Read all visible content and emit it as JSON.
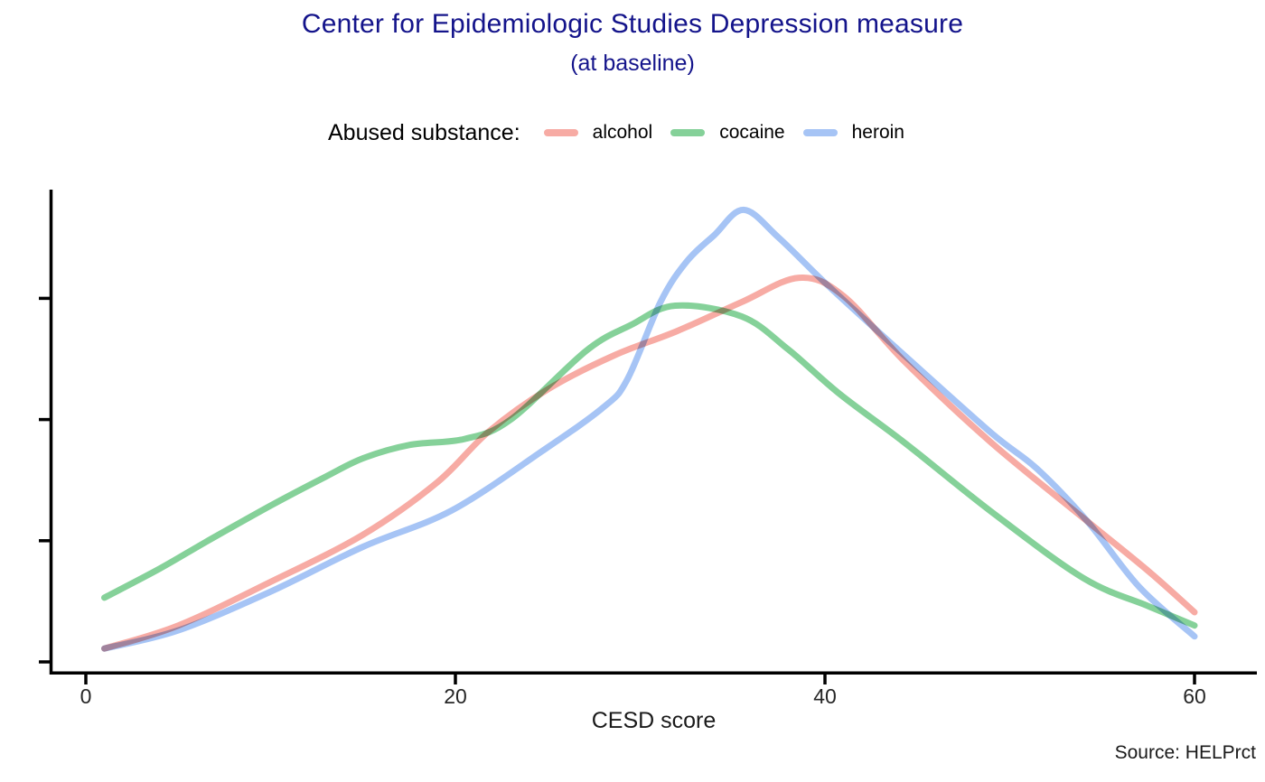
{
  "chart_data": {
    "type": "line",
    "title": "Center for Epidemiologic Studies Depression measure",
    "subtitle": "(at baseline)",
    "xlabel": "CESD score",
    "ylabel": "",
    "caption": "Source: HELPrct",
    "legend_title": "Abused substance:",
    "legend_position": "top-center",
    "grid": false,
    "x_ticks": [
      0,
      20,
      40,
      60
    ],
    "xlim": [
      -2,
      63.5
    ],
    "ylim": [
      0,
      0.039
    ],
    "y_ticks_unlabeled": [
      0,
      0.01,
      0.02,
      0.03
    ],
    "y_axis_labels_hidden": true,
    "title_color": "#14148B",
    "series": [
      {
        "name": "alcohol",
        "color": "#F7ABA4",
        "points": [
          [
            1,
            0.0011
          ],
          [
            5,
            0.003
          ],
          [
            10,
            0.0066
          ],
          [
            15,
            0.0105
          ],
          [
            19,
            0.0148
          ],
          [
            21.8,
            0.019
          ],
          [
            25,
            0.0225
          ],
          [
            28.6,
            0.0253
          ],
          [
            32,
            0.0273
          ],
          [
            35.5,
            0.0297
          ],
          [
            38.6,
            0.0317
          ],
          [
            41,
            0.0302
          ],
          [
            44.3,
            0.0248
          ],
          [
            49,
            0.0181
          ],
          [
            54.2,
            0.0116
          ],
          [
            57.5,
            0.0075
          ],
          [
            60,
            0.0041
          ]
        ]
      },
      {
        "name": "cocaine",
        "color": "#85D199",
        "points": [
          [
            1,
            0.0053
          ],
          [
            4,
            0.0077
          ],
          [
            6.5,
            0.0099
          ],
          [
            10,
            0.0129
          ],
          [
            13,
            0.0153
          ],
          [
            15,
            0.0168
          ],
          [
            17.5,
            0.0179
          ],
          [
            20.5,
            0.0184
          ],
          [
            23,
            0.02
          ],
          [
            27.1,
            0.0257
          ],
          [
            29.5,
            0.0278
          ],
          [
            31.9,
            0.0294
          ],
          [
            35.5,
            0.0285
          ],
          [
            38,
            0.0258
          ],
          [
            40.8,
            0.0221
          ],
          [
            44.3,
            0.0181
          ],
          [
            49,
            0.0124
          ],
          [
            54,
            0.0069
          ],
          [
            57.5,
            0.0046
          ],
          [
            60,
            0.003
          ]
        ]
      },
      {
        "name": "heroin",
        "color": "#A6C4F5",
        "points": [
          [
            1,
            0.0011
          ],
          [
            5,
            0.0026
          ],
          [
            10,
            0.0058
          ],
          [
            15,
            0.0095
          ],
          [
            19.8,
            0.0125
          ],
          [
            24.7,
            0.0174
          ],
          [
            28,
            0.021
          ],
          [
            29.3,
            0.0233
          ],
          [
            31.1,
            0.0297
          ],
          [
            32.5,
            0.033
          ],
          [
            34,
            0.0352
          ],
          [
            35.6,
            0.0373
          ],
          [
            37.5,
            0.035
          ],
          [
            40.2,
            0.031
          ],
          [
            44.3,
            0.0253
          ],
          [
            49,
            0.0189
          ],
          [
            51.5,
            0.0159
          ],
          [
            54.2,
            0.0116
          ],
          [
            57,
            0.0062
          ],
          [
            60,
            0.0021
          ]
        ]
      }
    ]
  }
}
